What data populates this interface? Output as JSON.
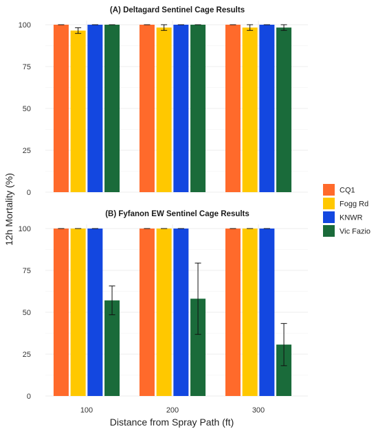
{
  "chart_data": [
    {
      "type": "bar",
      "title": "(A) Deltagard Sentinel Cage Results",
      "categories": [
        "100",
        "200",
        "300"
      ],
      "ylim": [
        0,
        100
      ],
      "yticks": [
        0,
        25,
        50,
        75,
        100
      ],
      "grid": true,
      "series": [
        {
          "name": "CQ1",
          "color": "#FF6A2B",
          "values": [
            100,
            100,
            100
          ],
          "errors": [
            0,
            0,
            0
          ]
        },
        {
          "name": "Fogg Rd",
          "color": "#FFC800",
          "values": [
            96.5,
            98.3,
            98.3
          ],
          "errors": [
            1.7,
            1.7,
            1.7
          ]
        },
        {
          "name": "KNWR",
          "color": "#1347E0",
          "values": [
            100,
            100,
            100
          ],
          "errors": [
            0,
            0,
            0
          ]
        },
        {
          "name": "Vic Fazio",
          "color": "#1A6B3A",
          "values": [
            100,
            100,
            98.3
          ],
          "errors": [
            0,
            0,
            1.7
          ]
        }
      ]
    },
    {
      "type": "bar",
      "title": "(B) Fyfanon EW Sentinel Cage Results",
      "categories": [
        "100",
        "200",
        "300"
      ],
      "ylim": [
        0,
        100
      ],
      "yticks": [
        0,
        25,
        50,
        75,
        100
      ],
      "grid": true,
      "series": [
        {
          "name": "CQ1",
          "color": "#FF6A2B",
          "values": [
            100,
            100,
            100
          ],
          "errors": [
            0,
            0,
            0
          ]
        },
        {
          "name": "Fogg Rd",
          "color": "#FFC800",
          "values": [
            100,
            100,
            100
          ],
          "errors": [
            0,
            0,
            0
          ]
        },
        {
          "name": "KNWR",
          "color": "#1347E0",
          "values": [
            100,
            100,
            100
          ],
          "errors": [
            0,
            0,
            0
          ]
        },
        {
          "name": "Vic Fazio",
          "color": "#1A6B3A",
          "values": [
            57.1,
            58.1,
            30.7
          ],
          "errors": [
            8.6,
            21.3,
            12.6
          ]
        }
      ]
    }
  ],
  "labels": {
    "xlabel": "Distance from Spray Path (ft)",
    "ylabel": "12h Mortality (%)"
  },
  "legend": {
    "placement": "right",
    "items": [
      {
        "name": "CQ1",
        "color": "#FF6A2B"
      },
      {
        "name": "Fogg Rd",
        "color": "#FFC800"
      },
      {
        "name": "KNWR",
        "color": "#1347E0"
      },
      {
        "name": "Vic Fazio",
        "color": "#1A6B3A"
      }
    ]
  }
}
